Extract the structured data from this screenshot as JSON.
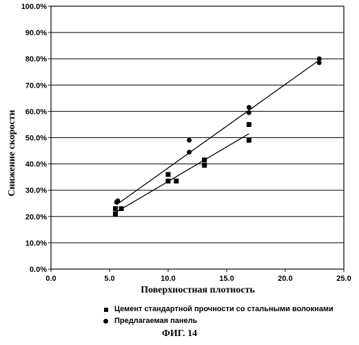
{
  "chart_data": {
    "type": "scatter",
    "xlabel": "Поверхностная плотность",
    "ylabel": "Снижение скорости",
    "xlim": [
      0,
      25
    ],
    "ylim": [
      0,
      100
    ],
    "x_ticks": [
      "0.0",
      "5.0",
      "10.0",
      "15.0",
      "20.0",
      "25.0"
    ],
    "y_ticks": [
      "0.0%",
      "10.0%",
      "20.0%",
      "30.0%",
      "40.0%",
      "50.0%",
      "60.0%",
      "70.0%",
      "80.0%",
      "90.0%",
      "100.0%"
    ],
    "grid": "horizontal",
    "legend_position": "bottom",
    "series": [
      {
        "name": "Цемент стандартной прочности со стальными волокнами",
        "marker": "square",
        "color": "#000000",
        "points": [
          [
            5.5,
            21.0
          ],
          [
            5.5,
            23.0
          ],
          [
            6.0,
            23.0
          ],
          [
            10.0,
            33.5
          ],
          [
            10.0,
            36.0
          ],
          [
            10.7,
            33.5
          ],
          [
            13.1,
            39.5
          ],
          [
            13.1,
            41.5
          ],
          [
            16.9,
            55.0
          ],
          [
            16.9,
            49.0
          ]
        ],
        "trendline": [
          [
            5.5,
            21.5
          ],
          [
            16.9,
            51.5
          ]
        ]
      },
      {
        "name": "Предлагаемая панель",
        "marker": "circle",
        "color": "#000000",
        "points": [
          [
            5.6,
            25.5
          ],
          [
            5.7,
            26.0
          ],
          [
            11.8,
            49.0
          ],
          [
            11.8,
            44.5
          ],
          [
            16.9,
            61.5
          ],
          [
            16.9,
            59.5
          ],
          [
            22.9,
            80.0
          ],
          [
            22.9,
            78.5
          ]
        ],
        "trendline": [
          [
            5.6,
            24.5
          ],
          [
            22.9,
            79.5
          ]
        ]
      }
    ]
  },
  "caption": "ФИГ. 14"
}
